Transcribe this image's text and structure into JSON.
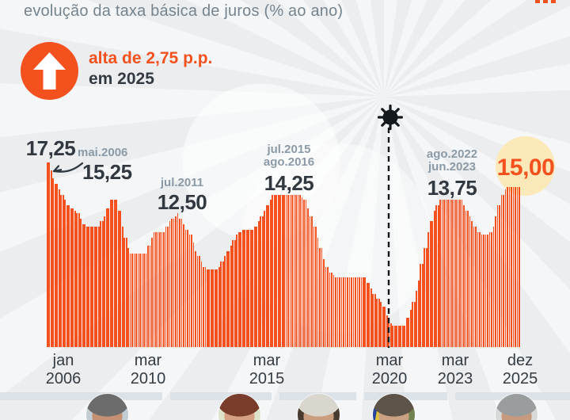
{
  "title": "evolução da taxa básica de juros (% ao ano)",
  "badge": {
    "icon": "arrow-up-icon",
    "line1": "alta de 2,75 p.p.",
    "line2": "em 2025"
  },
  "colors": {
    "accent_orange": "#f4511e",
    "highlight_yellow": "#fce9ba",
    "dark_text": "#32383f",
    "muted_label": "#8b9aa7",
    "title_text": "#75848e",
    "timeline_bar": "#dce3e8",
    "background": "#ebedef",
    "virus_black": "#14191d"
  },
  "annotations": [
    {
      "id": "peak-2006",
      "value": "17,25"
    },
    {
      "id": "mai-2006",
      "date": "mai.2006",
      "value": "15,25"
    },
    {
      "id": "jul-2011",
      "date": "jul.2011",
      "value": "12,50"
    },
    {
      "id": "plateau-2015-2016",
      "date1": "jul.2015",
      "date2": "ago.2016",
      "value": "14,25"
    },
    {
      "id": "plateau-2022-2023",
      "date1": "ago.2022",
      "date2": "jun.2023",
      "value": "13,75"
    },
    {
      "id": "current-2025",
      "value": "15,00"
    }
  ],
  "xaxis": [
    {
      "month": "jan",
      "year": "2006"
    },
    {
      "month": "mar",
      "year": "2010"
    },
    {
      "month": "mar",
      "year": "2015"
    },
    {
      "month": "mar",
      "year": "2020"
    },
    {
      "month": "mar",
      "year": "2023"
    },
    {
      "month": "dez",
      "year": "2025"
    }
  ],
  "chart_data": {
    "type": "bar",
    "title": "evolução da taxa básica de juros (% ao ano)",
    "unit": "% ao ano",
    "frequency": "monthly",
    "x_start": "jan/2006",
    "x_end": "dez/2025",
    "ylim": [
      0,
      17.25
    ],
    "grid": false,
    "events": [
      {
        "label": "covid-19-virus-icon",
        "x": "mar/2020"
      }
    ],
    "values": [
      17.25,
      17.25,
      16.5,
      15.75,
      15.25,
      15.25,
      14.75,
      14.25,
      14.25,
      13.75,
      13.25,
      13.25,
      13,
      13,
      12.75,
      12.5,
      12.5,
      12,
      11.5,
      11.5,
      11.25,
      11.25,
      11.25,
      11.25,
      11.25,
      11.25,
      11.25,
      11.75,
      11.75,
      12.25,
      13,
      13,
      13.75,
      13.75,
      13.75,
      13.75,
      12.75,
      12.75,
      11.25,
      10.25,
      10.25,
      9.25,
      8.75,
      8.75,
      8.75,
      8.75,
      8.75,
      8.75,
      8.75,
      8.75,
      8.75,
      9.5,
      9.5,
      10.25,
      10.75,
      10.75,
      10.75,
      10.75,
      10.75,
      10.75,
      11.25,
      11.25,
      11.75,
      12,
      12,
      12.25,
      12.5,
      12,
      12,
      11.5,
      11,
      11,
      10.5,
      10.5,
      9.75,
      9,
      8.5,
      8.5,
      8,
      7.5,
      7.5,
      7.25,
      7.25,
      7.25,
      7.25,
      7.25,
      7.25,
      7.5,
      8,
      8,
      8.5,
      9,
      9,
      9.5,
      10,
      10,
      10.5,
      10.75,
      10.75,
      11,
      11,
      11,
      11,
      11,
      11,
      11.25,
      11.25,
      11.75,
      12.25,
      12.25,
      12.75,
      13.25,
      13.25,
      13.75,
      14.25,
      14.25,
      14.25,
      14.25,
      14.25,
      14.25,
      14.25,
      14.25,
      14.25,
      14.25,
      14.25,
      14.25,
      14.25,
      14.25,
      14.25,
      14,
      13.75,
      13.75,
      13,
      12.25,
      12.25,
      11.25,
      11.25,
      10.25,
      9.25,
      9.25,
      8.25,
      7.5,
      7.5,
      7,
      7,
      6.75,
      6.5,
      6.5,
      6.5,
      6.5,
      6.5,
      6.5,
      6.5,
      6.5,
      6.5,
      6.5,
      6.5,
      6.5,
      6.5,
      6.5,
      6.5,
      6.5,
      6,
      6,
      5.5,
      5,
      5,
      4.5,
      4.5,
      4.25,
      3.75,
      3.75,
      3,
      2.25,
      2.25,
      2,
      2,
      2,
      2,
      2,
      2,
      2,
      2.75,
      2.75,
      3.5,
      4.25,
      4.25,
      5.25,
      6.25,
      7.75,
      7.75,
      9.25,
      9.25,
      10.75,
      11.75,
      11.75,
      12.75,
      13.25,
      13.25,
      13.75,
      13.75,
      13.75,
      13.75,
      13.75,
      13.75,
      13.75,
      13.75,
      13.75,
      13.75,
      13.75,
      13.75,
      13.25,
      12.75,
      12.75,
      12.25,
      11.75,
      11.25,
      11.25,
      10.75,
      10.75,
      10.5,
      10.5,
      10.5,
      10.5,
      10.75,
      10.75,
      11.25,
      12.25,
      13.25,
      13.25,
      14.25,
      14.25,
      14.75,
      15,
      15,
      15,
      15,
      15,
      15,
      15
    ]
  },
  "presidents": [
    {
      "photo_of": "lula-photo-2006-2010",
      "bg": "#c2ccd3",
      "hair": "#6b6c6b",
      "skin": "#c69173",
      "suit": "#3a3f45"
    },
    {
      "photo_of": "dilma-photo-2011-2016",
      "bg": "#dde4c9",
      "hair": "#7a3d2b",
      "skin": "#d6a183",
      "suit": "#7a4a4a"
    },
    {
      "photo_of": "temer-photo-2016-2018",
      "bg": "#4a3b30",
      "hair": "#d9d6ce",
      "skin": "#c99d7e",
      "suit": "#23272c"
    },
    {
      "photo_of": "bolsonaro-photo-2019-2022",
      "bg": "#71814f",
      "hair": "#5d5348",
      "skin": "#caa183",
      "suit": "#1d2a45",
      "accent1": "#27449c",
      "accent2": "#dfc23c"
    },
    {
      "photo_of": "lula-photo-2023-2025",
      "bg": "#d8dad9",
      "hair": "#9a9d9e",
      "skin": "#c79a7d",
      "suit": "#596066"
    }
  ]
}
